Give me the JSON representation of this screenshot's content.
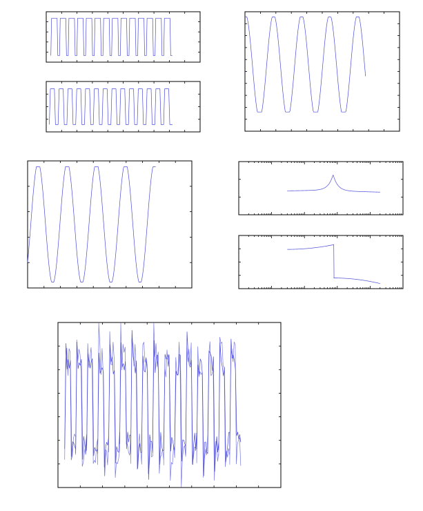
{
  "figure": {
    "background": "#ffffff",
    "axis_color": "#000000",
    "line_color": "#4b4bd8"
  },
  "chart_data": [
    {
      "id": "square-wave-1",
      "type": "line",
      "xlim": [
        0,
        1
      ],
      "ylim": [
        -1.35,
        1.35
      ],
      "xticks": 10,
      "yticks": 4,
      "grid": false,
      "legend": "none",
      "series": [
        {
          "generator": "square",
          "x": [
            0.03,
            0.82
          ],
          "cycles": 14,
          "amplitude": 1.0,
          "center": 0.0,
          "duty": 0.72,
          "edge_fraction": 0.08
        }
      ]
    },
    {
      "id": "square-wave-2",
      "type": "line",
      "xlim": [
        0,
        1
      ],
      "ylim": [
        -1.2,
        1.2
      ],
      "xticks": 10,
      "yticks": 3,
      "grid": false,
      "legend": "none",
      "series": [
        {
          "generator": "square",
          "x": [
            0.02,
            0.82
          ],
          "cycles": 14,
          "amplitude": 0.85,
          "center": 0.0,
          "duty": 0.58,
          "edge_fraction": 0.12
        }
      ]
    },
    {
      "id": "sine-right",
      "type": "line",
      "xlim": [
        0,
        1
      ],
      "ylim": [
        -1.15,
        1.15
      ],
      "xticks": 10,
      "yticks": 9,
      "grid": false,
      "legend": "none",
      "series": [
        {
          "generator": "sine",
          "x": [
            0.0,
            0.78
          ],
          "cycles": 4.3,
          "amplitude": 1.0,
          "center": 0.1,
          "phase": 1.45,
          "clip": [
            -0.78,
            1.05
          ]
        }
      ]
    },
    {
      "id": "sine-left",
      "type": "line",
      "xlim": [
        0,
        1
      ],
      "ylim": [
        -1.1,
        1.1
      ],
      "xticks": 10,
      "yticks": 4,
      "grid": false,
      "legend": "none",
      "series": [
        {
          "generator": "sine",
          "x": [
            0.0,
            0.78
          ],
          "cycles": 4.4,
          "amplitude": 1.05,
          "center": 0.02,
          "phase": -0.7,
          "clip": [
            -1.0,
            1.0
          ]
        }
      ]
    },
    {
      "id": "bode-magnitude",
      "type": "line",
      "xscale": "log",
      "xlim": [
        0.001,
        100
      ],
      "ylim": [
        -1.8,
        2.2
      ],
      "yticks": 2,
      "grid": false,
      "legend": "none",
      "series": [
        {
          "generator": "resonance",
          "x": [
            0.03,
            20
          ],
          "peak_x": 0.75,
          "peak_height": 1.2,
          "baseline": 0.0,
          "tail": -0.1,
          "width": 0.14
        }
      ]
    },
    {
      "id": "bode-phase",
      "type": "line",
      "xscale": "log",
      "xlim": [
        0.001,
        100
      ],
      "ylim": [
        -1.3,
        1.3
      ],
      "yticks": 3,
      "grid": false,
      "legend": "none",
      "series": [
        {
          "generator": "phase-drop",
          "x": [
            0.03,
            20
          ],
          "break_x": 0.78,
          "start": 0.62,
          "pre_break": 0.85,
          "post_break": -0.78,
          "end": -1.05
        }
      ]
    },
    {
      "id": "noisy-square",
      "type": "line",
      "xlim": [
        0,
        1
      ],
      "ylim": [
        -1.3,
        1.3
      ],
      "xticks": 10,
      "yticks": 6,
      "grid": false,
      "legend": "none",
      "series": [
        {
          "generator": "square",
          "x": [
            0.03,
            0.82
          ],
          "cycles": 16,
          "amplitude": 0.62,
          "center": 0.02,
          "duty": 0.52,
          "edge_fraction": 0.12,
          "noise": 0.18,
          "overshoot": 0.42,
          "seed": 17
        },
        {
          "generator": "square",
          "x": [
            0.03,
            0.82
          ],
          "cycles": 16,
          "amplitude": 0.72,
          "center": 0.0,
          "duty": 0.5,
          "edge_fraction": 0.1,
          "noise": 0.28,
          "overshoot": 0.55,
          "seed": 31
        }
      ]
    }
  ]
}
